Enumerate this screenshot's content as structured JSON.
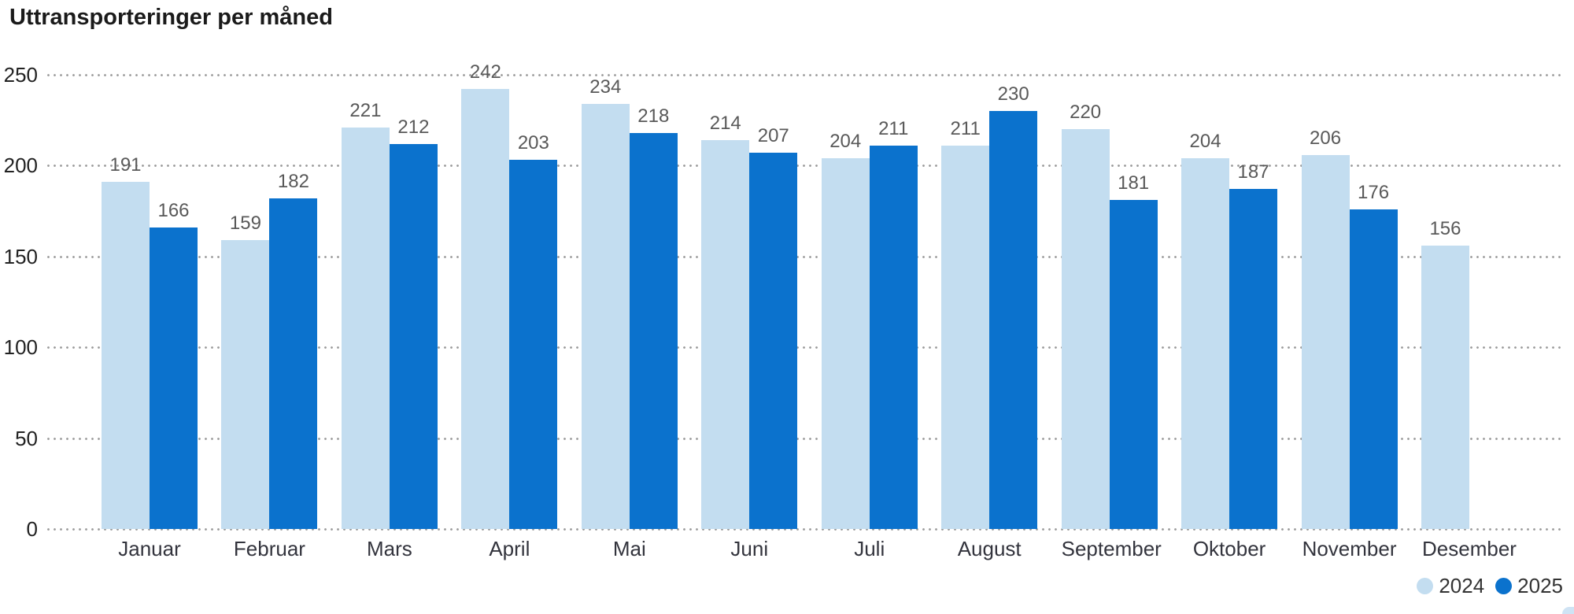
{
  "title": "Uttransporteringer per måned",
  "colors": {
    "series_2024": "#c3ddf0",
    "series_2025": "#0b72cd",
    "gridline": "#9b9b9b",
    "value_label": "#595959",
    "axis_label": "#222222",
    "month_label": "#33343d",
    "title": "#1a1a1a",
    "background": "#ffffff",
    "corner_decoration": "#cfe3f4"
  },
  "legend": {
    "position": "bottom-right",
    "items": [
      {
        "label": "2024",
        "color": "#c3ddf0"
      },
      {
        "label": "2025",
        "color": "#0b72cd"
      }
    ]
  },
  "chart_data": {
    "type": "bar",
    "title": "Uttransporteringer per måned",
    "categories": [
      "Januar",
      "Februar",
      "Mars",
      "April",
      "Mai",
      "Juni",
      "Juli",
      "August",
      "September",
      "Oktober",
      "November",
      "Desember"
    ],
    "series": [
      {
        "name": "2024",
        "color": "#c3ddf0",
        "values": [
          191,
          159,
          221,
          242,
          234,
          214,
          204,
          211,
          220,
          204,
          206,
          156
        ]
      },
      {
        "name": "2025",
        "color": "#0b72cd",
        "values": [
          166,
          182,
          212,
          203,
          218,
          207,
          211,
          230,
          181,
          187,
          176,
          null
        ]
      }
    ],
    "xlabel": "",
    "ylabel": "",
    "ylim": [
      0,
      250
    ],
    "yticks": [
      0,
      50,
      100,
      150,
      200,
      250
    ],
    "grid": "horizontal-dotted",
    "value_labels_shown": true,
    "legend_position": "bottom-right"
  }
}
